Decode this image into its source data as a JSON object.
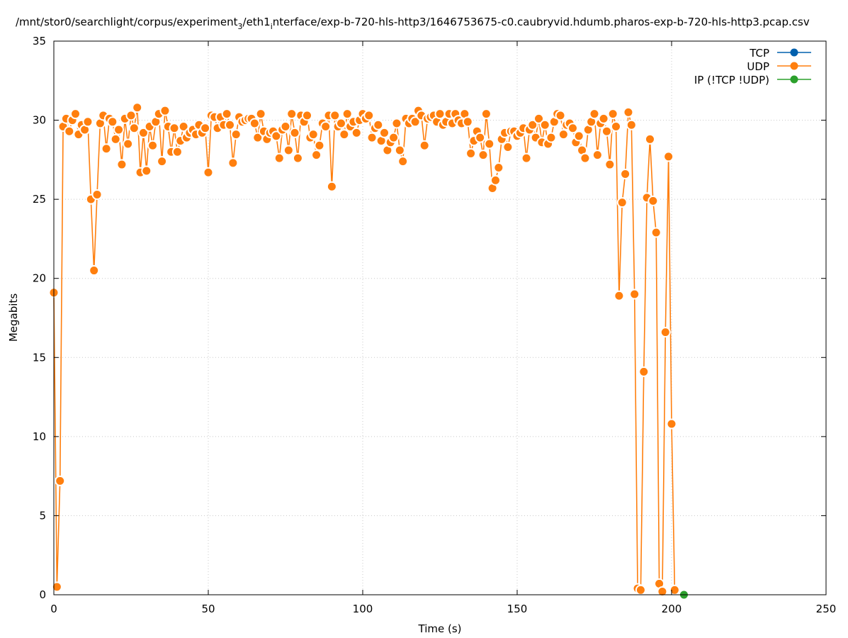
{
  "chart_data": {
    "type": "line",
    "title_main": "/mnt/stor0/searchlight/corpus/experiment",
    "title_sub1": "3",
    "title_mid": "/eth1",
    "title_sub2": "i",
    "title_end": "nterface/exp-b-720-hls-http3/1646753675-c0.caubryvid.hdumb.pharos-exp-b-720-hls-http3.pcap.csv",
    "xlabel": "Time (s)",
    "ylabel": "Megabits",
    "xlim": [
      0,
      250
    ],
    "ylim": [
      0,
      35
    ],
    "x_ticks": [
      0,
      50,
      100,
      150,
      200,
      250
    ],
    "y_ticks": [
      0,
      5,
      10,
      15,
      20,
      25,
      30,
      35
    ],
    "grid": true,
    "legend_position": "top-right",
    "series": [
      {
        "name": "TCP",
        "color": "#0060ad",
        "points": []
      },
      {
        "name": "UDP",
        "color": "#ff7f0e",
        "points": [
          [
            0,
            19.1
          ],
          [
            1,
            0.5
          ],
          [
            2,
            7.2
          ],
          [
            3,
            29.6
          ],
          [
            4,
            30.1
          ],
          [
            5,
            29.3
          ],
          [
            6,
            30
          ],
          [
            7,
            30.4
          ],
          [
            8,
            29.1
          ],
          [
            9,
            29.7
          ],
          [
            10,
            29.4
          ],
          [
            11,
            29.9
          ],
          [
            12,
            25
          ],
          [
            13,
            20.5
          ],
          [
            14,
            25.3
          ],
          [
            15,
            29.8
          ],
          [
            16,
            30.3
          ],
          [
            17,
            28.2
          ],
          [
            18,
            30.1
          ],
          [
            19,
            29.9
          ],
          [
            20,
            28.8
          ],
          [
            21,
            29.4
          ],
          [
            22,
            27.2
          ],
          [
            23,
            30.1
          ],
          [
            24,
            28.5
          ],
          [
            25,
            30.3
          ],
          [
            26,
            29.5
          ],
          [
            27,
            30.8
          ],
          [
            28,
            26.7
          ],
          [
            29,
            29.2
          ],
          [
            30,
            26.8
          ],
          [
            31,
            29.6
          ],
          [
            32,
            28.4
          ],
          [
            33,
            29.9
          ],
          [
            34,
            30.4
          ],
          [
            35,
            27.4
          ],
          [
            36,
            30.6
          ],
          [
            37,
            29.6
          ],
          [
            38,
            28
          ],
          [
            39,
            29.5
          ],
          [
            40,
            28
          ],
          [
            41,
            28.7
          ],
          [
            42,
            29.6
          ],
          [
            43,
            28.9
          ],
          [
            44,
            29.2
          ],
          [
            45,
            29.4
          ],
          [
            46,
            29.1
          ],
          [
            47,
            29.7
          ],
          [
            48,
            29.2
          ],
          [
            49,
            29.5
          ],
          [
            50,
            26.7
          ],
          [
            51,
            30.3
          ],
          [
            52,
            30.2
          ],
          [
            53,
            29.5
          ],
          [
            54,
            30.2
          ],
          [
            55,
            29.7
          ],
          [
            56,
            30.4
          ],
          [
            57,
            29.7
          ],
          [
            58,
            27.3
          ],
          [
            59,
            29.1
          ],
          [
            60,
            30.2
          ],
          [
            61,
            29.9
          ],
          [
            62,
            30
          ],
          [
            63,
            30.1
          ],
          [
            64,
            30.1
          ],
          [
            65,
            29.8
          ],
          [
            66,
            28.9
          ],
          [
            67,
            30.4
          ],
          [
            68,
            29.3
          ],
          [
            69,
            28.8
          ],
          [
            70,
            29.2
          ],
          [
            71,
            29.3
          ],
          [
            72,
            29
          ],
          [
            73,
            27.6
          ],
          [
            74,
            29.4
          ],
          [
            75,
            29.6
          ],
          [
            76,
            28.1
          ],
          [
            77,
            30.4
          ],
          [
            78,
            29.2
          ],
          [
            79,
            27.6
          ],
          [
            80,
            30.3
          ],
          [
            81,
            29.9
          ],
          [
            82,
            30.3
          ],
          [
            83,
            28.9
          ],
          [
            84,
            29.1
          ],
          [
            85,
            27.8
          ],
          [
            86,
            28.4
          ],
          [
            87,
            29.8
          ],
          [
            88,
            29.6
          ],
          [
            89,
            30.3
          ],
          [
            90,
            25.8
          ],
          [
            91,
            30.3
          ],
          [
            92,
            29.6
          ],
          [
            93,
            29.8
          ],
          [
            94,
            29.1
          ],
          [
            95,
            30.4
          ],
          [
            96,
            29.6
          ],
          [
            97,
            29.9
          ],
          [
            98,
            29.2
          ],
          [
            99,
            30
          ],
          [
            100,
            30.4
          ],
          [
            101,
            30.1
          ],
          [
            102,
            30.3
          ],
          [
            103,
            28.9
          ],
          [
            104,
            29.5
          ],
          [
            105,
            29.7
          ],
          [
            106,
            28.7
          ],
          [
            107,
            29.2
          ],
          [
            108,
            28.1
          ],
          [
            109,
            28.6
          ],
          [
            110,
            28.9
          ],
          [
            111,
            29.8
          ],
          [
            112,
            28.1
          ],
          [
            113,
            27.4
          ],
          [
            114,
            30.1
          ],
          [
            115,
            29.8
          ],
          [
            116,
            30.1
          ],
          [
            117,
            29.9
          ],
          [
            118,
            30.6
          ],
          [
            119,
            30.3
          ],
          [
            120,
            28.4
          ],
          [
            121,
            30.1
          ],
          [
            122,
            30.2
          ],
          [
            123,
            30.3
          ],
          [
            124,
            29.9
          ],
          [
            125,
            30.4
          ],
          [
            126,
            29.7
          ],
          [
            127,
            29.9
          ],
          [
            128,
            30.4
          ],
          [
            129,
            29.8
          ],
          [
            130,
            30.4
          ],
          [
            131,
            30
          ],
          [
            132,
            29.8
          ],
          [
            133,
            30.4
          ],
          [
            134,
            29.9
          ],
          [
            135,
            27.9
          ],
          [
            136,
            28.7
          ],
          [
            137,
            29.3
          ],
          [
            138,
            28.9
          ],
          [
            139,
            27.8
          ],
          [
            140,
            30.4
          ],
          [
            141,
            28.5
          ],
          [
            142,
            25.7
          ],
          [
            143,
            26.2
          ],
          [
            144,
            27
          ],
          [
            145,
            28.8
          ],
          [
            146,
            29.2
          ],
          [
            147,
            28.3
          ],
          [
            148,
            29.3
          ],
          [
            149,
            29.3
          ],
          [
            150,
            29
          ],
          [
            151,
            29.2
          ],
          [
            152,
            29.5
          ],
          [
            153,
            27.6
          ],
          [
            154,
            29.4
          ],
          [
            155,
            29.7
          ],
          [
            156,
            28.9
          ],
          [
            157,
            30.1
          ],
          [
            158,
            28.6
          ],
          [
            159,
            29.7
          ],
          [
            160,
            28.5
          ],
          [
            161,
            28.9
          ],
          [
            162,
            29.9
          ],
          [
            163,
            30.4
          ],
          [
            164,
            30.3
          ],
          [
            165,
            29.1
          ],
          [
            166,
            29.7
          ],
          [
            167,
            29.8
          ],
          [
            168,
            29.5
          ],
          [
            169,
            28.6
          ],
          [
            170,
            29
          ],
          [
            171,
            28.1
          ],
          [
            172,
            27.6
          ],
          [
            173,
            29.4
          ],
          [
            174,
            29.9
          ],
          [
            175,
            30.4
          ],
          [
            176,
            27.8
          ],
          [
            177,
            29.8
          ],
          [
            178,
            30.1
          ],
          [
            179,
            29.3
          ],
          [
            180,
            27.2
          ],
          [
            181,
            30.4
          ],
          [
            182,
            29.6
          ],
          [
            183,
            18.9
          ],
          [
            184,
            24.8
          ],
          [
            185,
            26.6
          ],
          [
            186,
            30.5
          ],
          [
            187,
            29.7
          ],
          [
            188,
            19
          ],
          [
            189,
            0.4
          ],
          [
            190,
            0.3
          ],
          [
            191,
            14.1
          ],
          [
            192,
            25.1
          ],
          [
            193,
            28.8
          ],
          [
            194,
            24.9
          ],
          [
            195,
            22.9
          ],
          [
            196,
            0.7
          ],
          [
            197,
            0.2
          ],
          [
            198,
            16.6
          ],
          [
            199,
            27.7
          ],
          [
            200,
            10.8
          ],
          [
            201,
            0.3
          ]
        ]
      },
      {
        "name": "IP (!TCP  !UDP)",
        "color": "#2ca02c",
        "points": [
          [
            204,
            0
          ]
        ]
      }
    ]
  }
}
